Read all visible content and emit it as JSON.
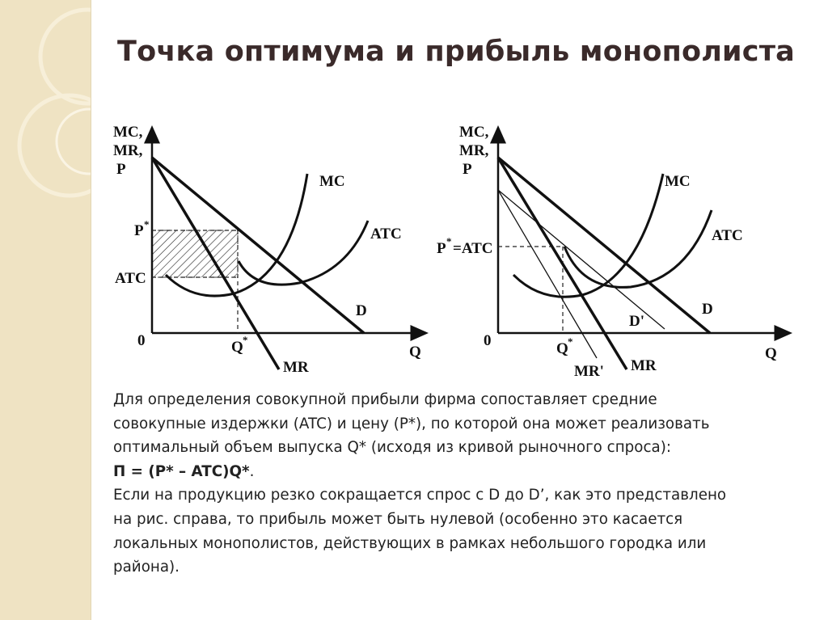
{
  "slide": {
    "title": "Точка оптимума и прибыль монополиста",
    "colors": {
      "side_band": "#efe3c3",
      "title": "#3a2a2a",
      "text": "#222222",
      "line": "#111111"
    }
  },
  "left_graph": {
    "y_axis_label_lines": [
      "MC,",
      "MR,",
      "P"
    ],
    "x_axis_label": "Q",
    "origin_label": "0",
    "p_star_label": "P",
    "p_star_sup": "*",
    "atc_label": "ATC",
    "q_star_label": "Q",
    "q_star_sup": "*",
    "curve_labels": {
      "mc": "MC",
      "atc": "ATC",
      "d": "D",
      "mr": "MR"
    },
    "profit_area": "hatched"
  },
  "right_graph": {
    "y_axis_label_lines": [
      "MC,",
      "MR,",
      "P"
    ],
    "x_axis_label": "Q",
    "origin_label": "0",
    "p_atc_label_p": "P",
    "p_atc_label_sup": "*",
    "p_atc_label_rest": "=ATC",
    "q_star_label": "Q",
    "q_star_sup": "*",
    "curve_labels": {
      "mc": "MC",
      "atc": "ATC",
      "d": "D",
      "d_prime": "D'",
      "mr": "MR",
      "mr_prime": "MR'"
    }
  },
  "text": {
    "lines": [
      "Для определения совокупной прибыли фирма сопоставляет средние",
      "совокупные издержки (ATC) и цену (P*), по которой она может реализовать",
      "оптимальный объем выпуска Q* (исходя из кривой рыночного спроса):"
    ],
    "formula": "П = (P* – ATC)Q*",
    "formula_end": ".",
    "lines2": [
      "Если на продукцию резко сокращается спрос с D до D’, как это представлено",
      "на рис. справа, то прибыль может быть нулевой (особенно это касается",
      "локальных монополистов, действующих в рамках небольшого городка или",
      "района)."
    ]
  }
}
